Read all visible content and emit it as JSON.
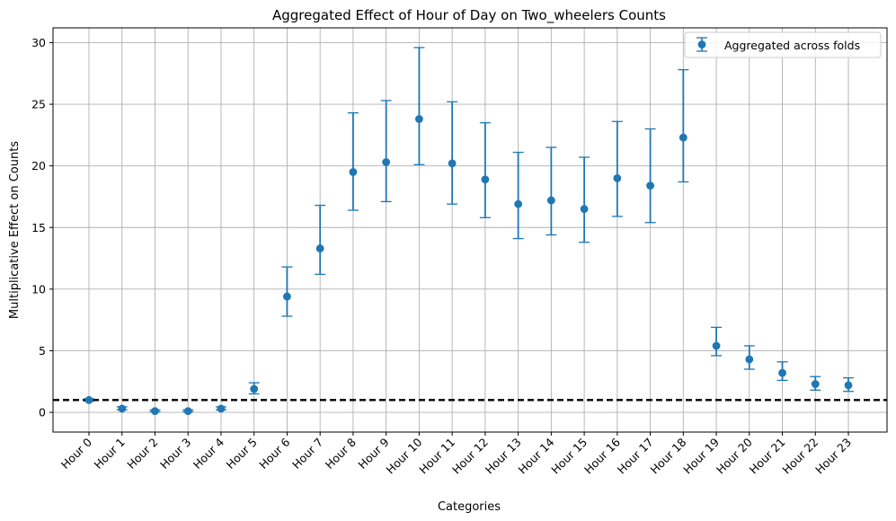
{
  "chart_data": {
    "type": "scatter",
    "title": "Aggregated Effect of Hour of Day on Two_wheelers Counts",
    "xlabel": "Categories",
    "ylabel": "Multiplicative Effect on Counts",
    "categories": [
      "Hour 0",
      "Hour 1",
      "Hour 2",
      "Hour 3",
      "Hour 4",
      "Hour 5",
      "Hour 6",
      "Hour 7",
      "Hour 8",
      "Hour 9",
      "Hour 10",
      "Hour 11",
      "Hour 12",
      "Hour 13",
      "Hour 14",
      "Hour 15",
      "Hour 16",
      "Hour 17",
      "Hour 18",
      "Hour 19",
      "Hour 20",
      "Hour 21",
      "Hour 22",
      "Hour 23"
    ],
    "series": [
      {
        "name": "Aggregated across folds",
        "values": [
          1.0,
          0.3,
          0.1,
          0.1,
          0.3,
          1.9,
          9.4,
          13.3,
          19.5,
          20.3,
          23.8,
          20.2,
          18.9,
          16.9,
          17.2,
          16.5,
          19.0,
          18.4,
          22.3,
          5.4,
          4.3,
          3.2,
          2.3,
          2.2
        ],
        "lower": [
          0.9,
          0.2,
          0.05,
          0.05,
          0.2,
          1.5,
          7.8,
          11.2,
          16.4,
          17.1,
          20.1,
          16.9,
          15.8,
          14.1,
          14.4,
          13.8,
          15.9,
          15.4,
          18.7,
          4.6,
          3.5,
          2.6,
          1.8,
          1.7
        ],
        "upper": [
          1.1,
          0.45,
          0.2,
          0.2,
          0.45,
          2.4,
          11.8,
          16.8,
          24.3,
          25.3,
          29.6,
          25.2,
          23.5,
          21.1,
          21.5,
          20.7,
          23.6,
          23.0,
          27.8,
          6.9,
          5.4,
          4.1,
          2.9,
          2.8
        ]
      }
    ],
    "reference_line": {
      "y": 1.0,
      "style": "dashed",
      "color": "#000000"
    },
    "ylim": [
      -1.6,
      31.2
    ],
    "yticks": [
      0,
      5,
      10,
      15,
      20,
      25,
      30
    ],
    "grid": true,
    "legend_position": "top-right",
    "color": "#1f77b4"
  }
}
